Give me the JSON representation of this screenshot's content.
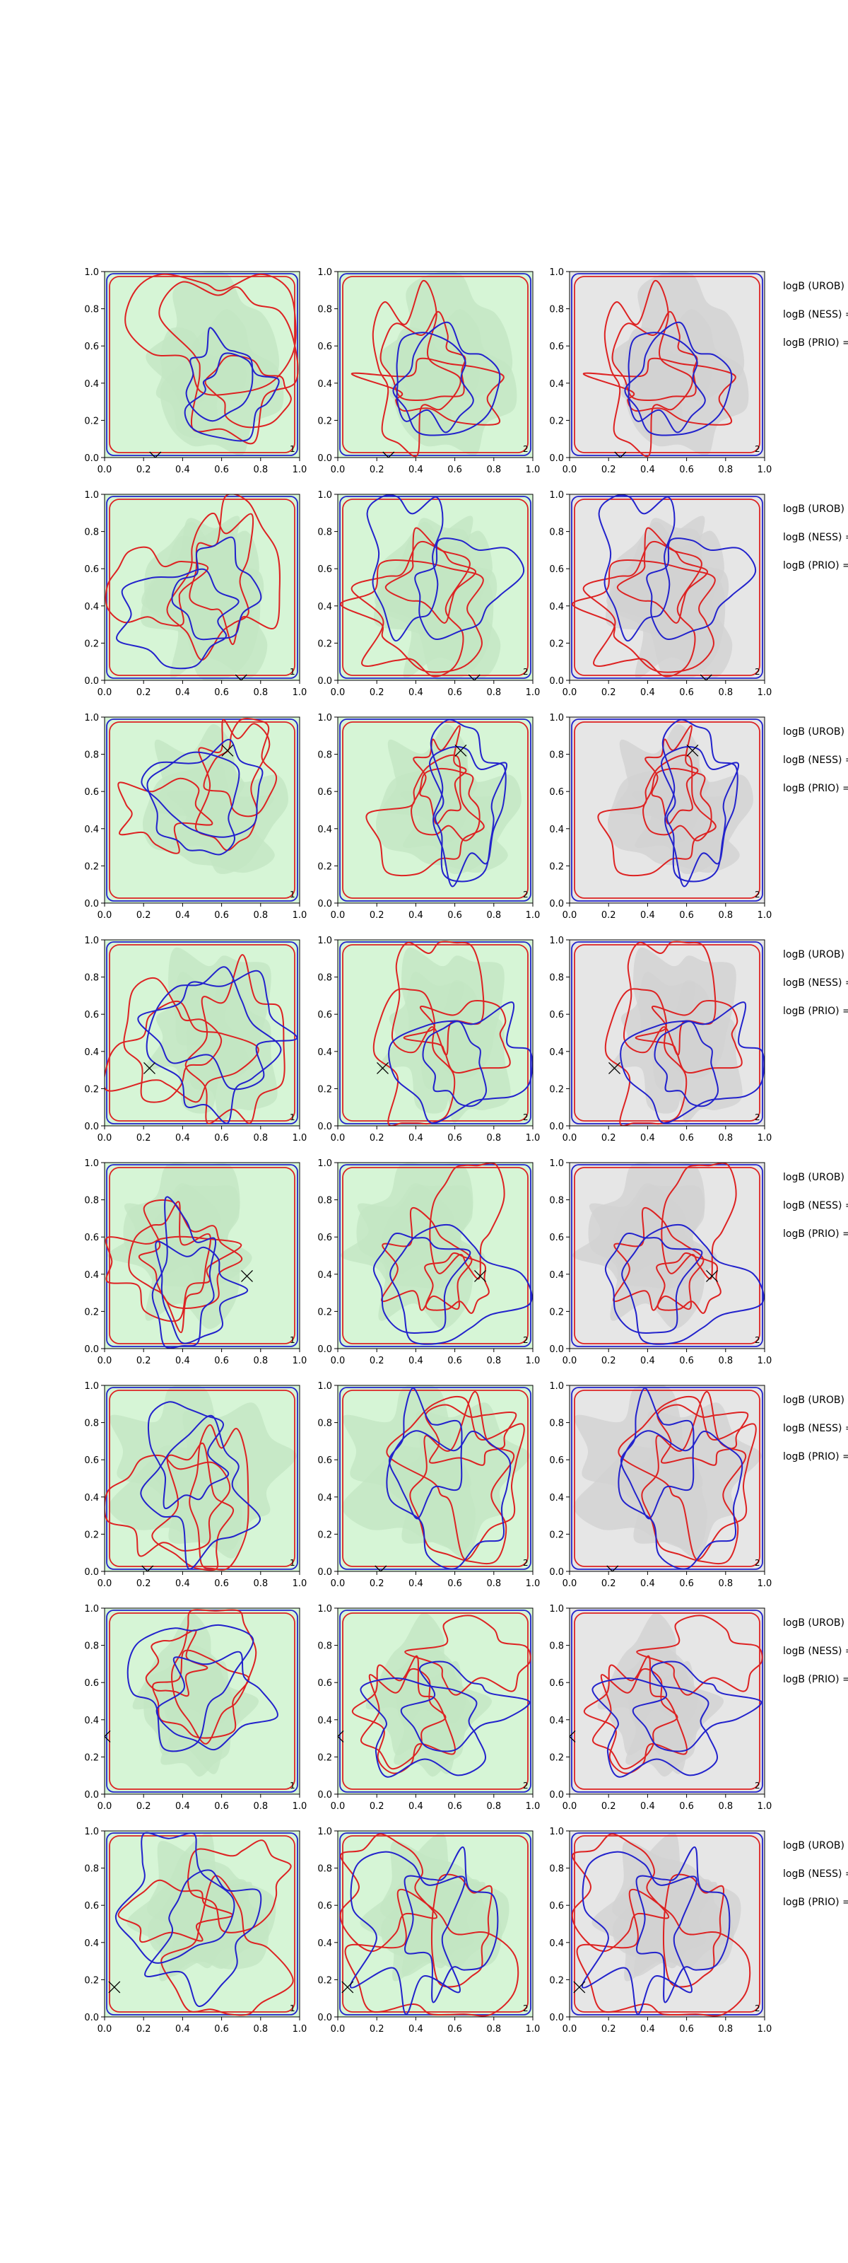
{
  "chart_data": {
    "type": "contour-grid",
    "rows": 8,
    "columns": 3,
    "xlim": [
      0.0,
      1.0
    ],
    "ylim": [
      0.0,
      1.0
    ],
    "ticks": [
      "0.0",
      "0.2",
      "0.4",
      "0.6",
      "0.8",
      "1.0"
    ],
    "tick_values": [
      0.0,
      0.2,
      0.4,
      0.6,
      0.8,
      1.0
    ],
    "panel_numbers": [
      "1",
      "2",
      "2"
    ],
    "side_labels": [
      "logB (UROB) =",
      "logB (NESS) =",
      "logB (PRIO) ="
    ],
    "background_colors": [
      "#d6f5d6",
      "#d6f5d6",
      "#e6e6e6"
    ],
    "fill_colors": [
      "#c3e6c3",
      "#c3e6c3",
      "#d2d2d2"
    ],
    "contour_colors": {
      "red": "#dd2222",
      "blue": "#2222cc"
    },
    "marker_positions": [
      [
        0.26,
        0.0
      ],
      [
        0.7,
        0.0
      ],
      [
        0.63,
        0.82
      ],
      [
        0.23,
        0.31
      ],
      [
        0.73,
        0.39
      ],
      [
        0.22,
        0.0
      ],
      [
        0.0,
        0.31
      ],
      [
        0.05,
        0.16
      ]
    ]
  }
}
